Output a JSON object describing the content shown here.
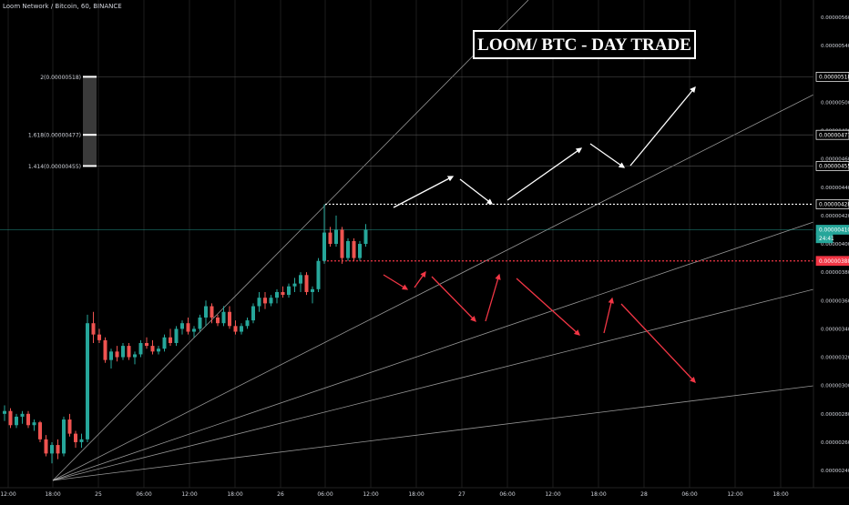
{
  "header": {
    "symbol": "Loom Network / Bitcoin, 60, BINANCE"
  },
  "title": "LOOM/ BTC - DAY TRADE",
  "chart_data": {
    "type": "candlestick",
    "symbol": "LOOMBTC",
    "exchange": "BINANCE",
    "interval": "60",
    "ylim": [
      2.4e-06,
      5.6e-06
    ],
    "y_ticks": [
      "0.00000560",
      "0.00000540",
      "0.00000500",
      "0.00000480",
      "0.00000460",
      "0.00000440",
      "0.00000420",
      "0.00000400",
      "0.00000380",
      "0.00000360",
      "0.00000340",
      "0.00000320",
      "0.00000300",
      "0.00000280",
      "0.00000260",
      "0.00000240"
    ],
    "x_ticks": [
      "12:00",
      "18:00",
      "25",
      "06:00",
      "12:00",
      "18:00",
      "26",
      "06:00",
      "12:00",
      "18:00",
      "27",
      "06:00",
      "12:00",
      "18:00",
      "28",
      "06:00",
      "12:00",
      "18:00"
    ],
    "price_labels": [
      {
        "text": "0.00000518",
        "value": 5.18e-06,
        "kind": "outline"
      },
      {
        "text": "0.00000477",
        "value": 4.77e-06,
        "kind": "outline"
      },
      {
        "text": "0.00000455",
        "value": 4.55e-06,
        "kind": "outline"
      },
      {
        "text": "0.00000428",
        "value": 4.28e-06,
        "kind": "outline"
      },
      {
        "text": "0.00000410",
        "value": 4.1e-06,
        "kind": "last"
      },
      {
        "text": "24:41",
        "value": 4.04e-06,
        "kind": "countdown"
      },
      {
        "text": "0.00000388",
        "value": 3.88e-06,
        "kind": "stop"
      }
    ],
    "fib_levels": [
      {
        "label": "2(0.00000518)",
        "ratio": 2,
        "value": 5.18e-06
      },
      {
        "label": "1.618(0.00000477)",
        "ratio": 1.618,
        "value": 4.77e-06
      },
      {
        "label": "1.414(0.00000455)",
        "ratio": 1.414,
        "value": 4.55e-06
      }
    ],
    "resistance": 4.28e-06,
    "support": 3.88e-06,
    "candles": [
      {
        "o": 2.8,
        "h": 2.86,
        "l": 2.75,
        "c": 2.82
      },
      {
        "o": 2.82,
        "h": 2.84,
        "l": 2.7,
        "c": 2.72
      },
      {
        "o": 2.72,
        "h": 2.8,
        "l": 2.7,
        "c": 2.78
      },
      {
        "o": 2.78,
        "h": 2.82,
        "l": 2.73,
        "c": 2.8
      },
      {
        "o": 2.8,
        "h": 2.82,
        "l": 2.7,
        "c": 2.72
      },
      {
        "o": 2.72,
        "h": 2.76,
        "l": 2.68,
        "c": 2.74
      },
      {
        "o": 2.74,
        "h": 2.75,
        "l": 2.6,
        "c": 2.62
      },
      {
        "o": 2.62,
        "h": 2.65,
        "l": 2.5,
        "c": 2.52
      },
      {
        "o": 2.52,
        "h": 2.6,
        "l": 2.45,
        "c": 2.58
      },
      {
        "o": 2.58,
        "h": 2.62,
        "l": 2.48,
        "c": 2.52
      },
      {
        "o": 2.52,
        "h": 2.78,
        "l": 2.5,
        "c": 2.76
      },
      {
        "o": 2.76,
        "h": 2.8,
        "l": 2.64,
        "c": 2.66
      },
      {
        "o": 2.66,
        "h": 2.68,
        "l": 2.56,
        "c": 2.6
      },
      {
        "o": 2.6,
        "h": 2.66,
        "l": 2.56,
        "c": 2.62
      },
      {
        "o": 2.62,
        "h": 3.5,
        "l": 2.6,
        "c": 3.44
      },
      {
        "o": 3.44,
        "h": 3.52,
        "l": 3.3,
        "c": 3.36
      },
      {
        "o": 3.36,
        "h": 3.4,
        "l": 3.3,
        "c": 3.32
      },
      {
        "o": 3.32,
        "h": 3.34,
        "l": 3.16,
        "c": 3.18
      },
      {
        "o": 3.18,
        "h": 3.26,
        "l": 3.12,
        "c": 3.24
      },
      {
        "o": 3.24,
        "h": 3.28,
        "l": 3.17,
        "c": 3.2
      },
      {
        "o": 3.2,
        "h": 3.3,
        "l": 3.18,
        "c": 3.28
      },
      {
        "o": 3.28,
        "h": 3.3,
        "l": 3.18,
        "c": 3.2
      },
      {
        "o": 3.2,
        "h": 3.24,
        "l": 3.15,
        "c": 3.22
      },
      {
        "o": 3.22,
        "h": 3.32,
        "l": 3.2,
        "c": 3.3
      },
      {
        "o": 3.3,
        "h": 3.34,
        "l": 3.26,
        "c": 3.28
      },
      {
        "o": 3.28,
        "h": 3.32,
        "l": 3.22,
        "c": 3.24
      },
      {
        "o": 3.24,
        "h": 3.28,
        "l": 3.22,
        "c": 3.26
      },
      {
        "o": 3.26,
        "h": 3.36,
        "l": 3.24,
        "c": 3.34
      },
      {
        "o": 3.34,
        "h": 3.4,
        "l": 3.28,
        "c": 3.3
      },
      {
        "o": 3.3,
        "h": 3.42,
        "l": 3.28,
        "c": 3.4
      },
      {
        "o": 3.4,
        "h": 3.46,
        "l": 3.36,
        "c": 3.44
      },
      {
        "o": 3.44,
        "h": 3.48,
        "l": 3.36,
        "c": 3.38
      },
      {
        "o": 3.38,
        "h": 3.42,
        "l": 3.34,
        "c": 3.4
      },
      {
        "o": 3.4,
        "h": 3.5,
        "l": 3.38,
        "c": 3.48
      },
      {
        "o": 3.48,
        "h": 3.6,
        "l": 3.42,
        "c": 3.56
      },
      {
        "o": 3.56,
        "h": 3.58,
        "l": 3.44,
        "c": 3.48
      },
      {
        "o": 3.48,
        "h": 3.5,
        "l": 3.42,
        "c": 3.44
      },
      {
        "o": 3.44,
        "h": 3.56,
        "l": 3.42,
        "c": 3.52
      },
      {
        "o": 3.52,
        "h": 3.56,
        "l": 3.4,
        "c": 3.42
      },
      {
        "o": 3.42,
        "h": 3.46,
        "l": 3.36,
        "c": 3.38
      },
      {
        "o": 3.38,
        "h": 3.44,
        "l": 3.36,
        "c": 3.42
      },
      {
        "o": 3.42,
        "h": 3.48,
        "l": 3.4,
        "c": 3.46
      },
      {
        "o": 3.46,
        "h": 3.58,
        "l": 3.44,
        "c": 3.56
      },
      {
        "o": 3.56,
        "h": 3.66,
        "l": 3.52,
        "c": 3.62
      },
      {
        "o": 3.62,
        "h": 3.66,
        "l": 3.54,
        "c": 3.58
      },
      {
        "o": 3.58,
        "h": 3.64,
        "l": 3.56,
        "c": 3.62
      },
      {
        "o": 3.62,
        "h": 3.68,
        "l": 3.58,
        "c": 3.66
      },
      {
        "o": 3.66,
        "h": 3.7,
        "l": 3.62,
        "c": 3.64
      },
      {
        "o": 3.64,
        "h": 3.72,
        "l": 3.62,
        "c": 3.7
      },
      {
        "o": 3.7,
        "h": 3.76,
        "l": 3.66,
        "c": 3.72
      },
      {
        "o": 3.72,
        "h": 3.8,
        "l": 3.66,
        "c": 3.78
      },
      {
        "o": 3.78,
        "h": 3.8,
        "l": 3.64,
        "c": 3.66
      },
      {
        "o": 3.66,
        "h": 3.7,
        "l": 3.58,
        "c": 3.68
      },
      {
        "o": 3.68,
        "h": 3.9,
        "l": 3.66,
        "c": 3.88
      },
      {
        "o": 3.88,
        "h": 4.28,
        "l": 3.86,
        "c": 4.08
      },
      {
        "o": 4.08,
        "h": 4.12,
        "l": 3.98,
        "c": 4.0
      },
      {
        "o": 4.0,
        "h": 4.2,
        "l": 3.98,
        "c": 4.1
      },
      {
        "o": 4.1,
        "h": 4.12,
        "l": 3.86,
        "c": 3.9
      },
      {
        "o": 3.9,
        "h": 4.04,
        "l": 3.88,
        "c": 4.02
      },
      {
        "o": 4.02,
        "h": 4.04,
        "l": 3.88,
        "c": 3.9
      },
      {
        "o": 3.9,
        "h": 4.02,
        "l": 3.88,
        "c": 4.0
      },
      {
        "o": 4.0,
        "h": 4.14,
        "l": 3.98,
        "c": 4.1
      }
    ],
    "colors": {
      "up": "#26a69a",
      "down": "#ef5350",
      "background": "#000000",
      "text": "#d1d4dc",
      "grid": "#1b1b1b",
      "fan": "#bdbdbd",
      "arrow_up": "#ffffff",
      "arrow_down": "#f23645"
    }
  }
}
